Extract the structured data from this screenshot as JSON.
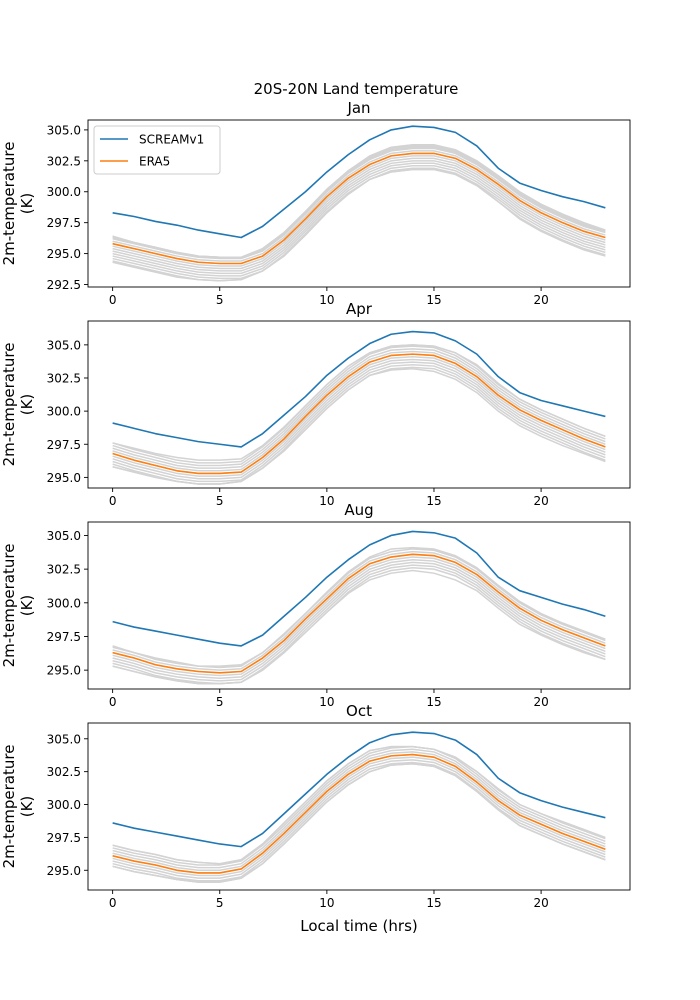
{
  "figure": {
    "title": "20S-20N Land temperature",
    "xlabel": "Local time (hrs)"
  },
  "chart_data": [
    {
      "type": "line",
      "title": "Jan",
      "xlabel": "",
      "ylabel": "2m-temperature\n(K)",
      "xlim": [
        -1.15,
        24.15
      ],
      "ylim": [
        292.3,
        305.8
      ],
      "xticks": [
        0,
        5,
        10,
        15,
        20
      ],
      "yticks": [
        292.5,
        295.0,
        297.5,
        300.0,
        302.5,
        305.0
      ],
      "ytick_labels": [
        "292.5",
        "295.0",
        "297.5",
        "300.0",
        "302.5",
        "305.0"
      ],
      "legend": {
        "position": "top-left",
        "entries": [
          "SCREAMv1",
          "ERA5"
        ]
      },
      "x": [
        0,
        1,
        2,
        3,
        4,
        5,
        6,
        7,
        8,
        9,
        10,
        11,
        12,
        13,
        14,
        15,
        16,
        17,
        18,
        19,
        20,
        21,
        22,
        23
      ],
      "series": [
        {
          "name": "SCREAMv1",
          "color": "#1f77b4",
          "values": [
            298.3,
            298.0,
            297.6,
            297.3,
            296.9,
            296.6,
            296.3,
            297.2,
            298.6,
            300.0,
            301.6,
            303.0,
            304.2,
            305.0,
            305.3,
            305.2,
            304.8,
            303.7,
            301.9,
            300.7,
            300.1,
            299.6,
            299.2,
            298.7
          ]
        },
        {
          "name": "ERA5",
          "color": "#ff7f0e",
          "values": [
            295.8,
            295.4,
            295.0,
            294.6,
            294.3,
            294.2,
            294.2,
            294.8,
            296.1,
            297.8,
            299.6,
            301.1,
            302.2,
            302.9,
            303.1,
            303.1,
            302.7,
            301.8,
            300.6,
            299.3,
            298.3,
            297.5,
            296.8,
            296.3
          ]
        }
      ],
      "ensemble": {
        "color": "#d3d3d3",
        "offsets": [
          -1.4,
          -1.2,
          -1.0,
          -0.8,
          -0.6,
          -0.4,
          -0.2,
          0.0,
          0.2,
          0.4,
          0.5,
          0.6
        ],
        "upper": [
          296.4,
          295.9,
          295.5,
          295.1,
          294.8,
          294.7,
          294.7,
          295.4,
          296.7,
          298.4,
          300.2,
          301.7,
          302.9,
          303.6,
          303.8,
          303.8,
          303.4,
          302.5,
          301.3,
          300.0,
          299.0,
          298.2,
          297.5,
          296.9
        ],
        "lower": [
          294.3,
          293.9,
          293.5,
          293.1,
          292.9,
          292.8,
          292.9,
          293.6,
          294.8,
          296.5,
          298.3,
          299.8,
          301.0,
          301.6,
          301.8,
          301.8,
          301.4,
          300.5,
          299.2,
          297.8,
          296.8,
          296.0,
          295.3,
          294.8
        ]
      }
    },
    {
      "type": "line",
      "title": "Apr",
      "xlabel": "",
      "ylabel": "2m-temperature\n(K)",
      "xlim": [
        -1.15,
        24.15
      ],
      "ylim": [
        294.2,
        306.8
      ],
      "xticks": [
        0,
        5,
        10,
        15,
        20
      ],
      "yticks": [
        295.0,
        297.5,
        300.0,
        302.5,
        305.0
      ],
      "ytick_labels": [
        "295.0",
        "297.5",
        "300.0",
        "302.5",
        "305.0"
      ],
      "x": [
        0,
        1,
        2,
        3,
        4,
        5,
        6,
        7,
        8,
        9,
        10,
        11,
        12,
        13,
        14,
        15,
        16,
        17,
        18,
        19,
        20,
        21,
        22,
        23
      ],
      "series": [
        {
          "name": "SCREAMv1",
          "color": "#1f77b4",
          "values": [
            299.1,
            298.7,
            298.3,
            298.0,
            297.7,
            297.5,
            297.3,
            298.3,
            299.7,
            301.1,
            302.7,
            304.0,
            305.1,
            305.8,
            306.0,
            305.9,
            305.3,
            304.3,
            302.6,
            301.4,
            300.8,
            300.4,
            300.0,
            299.6
          ]
        },
        {
          "name": "ERA5",
          "color": "#ff7f0e",
          "values": [
            296.8,
            296.3,
            295.9,
            295.5,
            295.3,
            295.3,
            295.4,
            296.5,
            297.9,
            299.6,
            301.2,
            302.6,
            303.7,
            304.2,
            304.3,
            304.2,
            303.6,
            302.6,
            301.2,
            300.1,
            299.3,
            298.6,
            297.9,
            297.3
          ]
        }
      ],
      "ensemble": {
        "color": "#d3d3d3",
        "offsets": [
          -1.0,
          -0.8,
          -0.6,
          -0.4,
          -0.2,
          0.0,
          0.2,
          0.4,
          0.6,
          0.8
        ],
        "upper": [
          297.6,
          297.2,
          296.8,
          296.5,
          296.3,
          296.3,
          296.4,
          297.4,
          298.8,
          300.4,
          302.0,
          303.4,
          304.4,
          304.9,
          305.0,
          304.9,
          304.4,
          303.5,
          302.1,
          300.9,
          300.1,
          299.4,
          298.7,
          298.1
        ],
        "lower": [
          295.8,
          295.4,
          295.0,
          294.7,
          294.5,
          294.5,
          294.7,
          295.7,
          297.0,
          298.6,
          300.2,
          301.6,
          302.7,
          303.1,
          303.2,
          303.0,
          302.4,
          301.4,
          300.0,
          298.9,
          298.1,
          297.4,
          296.8,
          296.2
        ]
      }
    },
    {
      "type": "line",
      "title": "Aug",
      "xlabel": "",
      "ylabel": "2m-temperature\n(K)",
      "xlim": [
        -1.15,
        24.15
      ],
      "ylim": [
        293.6,
        306.0
      ],
      "xticks": [
        0,
        5,
        10,
        15,
        20
      ],
      "yticks": [
        295.0,
        297.5,
        300.0,
        302.5,
        305.0
      ],
      "ytick_labels": [
        "295.0",
        "297.5",
        "300.0",
        "302.5",
        "305.0"
      ],
      "x": [
        0,
        1,
        2,
        3,
        4,
        5,
        6,
        7,
        8,
        9,
        10,
        11,
        12,
        13,
        14,
        15,
        16,
        17,
        18,
        19,
        20,
        21,
        22,
        23
      ],
      "series": [
        {
          "name": "SCREAMv1",
          "color": "#1f77b4",
          "values": [
            298.6,
            298.2,
            297.9,
            297.6,
            297.3,
            297.0,
            296.8,
            297.6,
            299.0,
            300.4,
            301.9,
            303.2,
            304.3,
            305.0,
            305.3,
            305.2,
            304.8,
            303.7,
            301.9,
            300.9,
            300.4,
            299.9,
            299.5,
            299.0
          ]
        },
        {
          "name": "ERA5",
          "color": "#ff7f0e",
          "values": [
            296.3,
            295.9,
            295.4,
            295.1,
            294.9,
            294.8,
            294.9,
            295.9,
            297.2,
            298.8,
            300.3,
            301.8,
            302.9,
            303.4,
            303.6,
            303.5,
            303.0,
            302.1,
            300.8,
            299.6,
            298.7,
            298.0,
            297.4,
            296.8
          ]
        }
      ],
      "ensemble": {
        "color": "#d3d3d3",
        "offsets": [
          -1.0,
          -0.8,
          -0.6,
          -0.4,
          -0.2,
          0.0,
          0.2,
          0.4
        ],
        "upper": [
          296.8,
          296.3,
          295.9,
          295.6,
          295.3,
          295.3,
          295.4,
          296.3,
          297.7,
          299.2,
          300.8,
          302.3,
          303.4,
          304.0,
          304.1,
          304.0,
          303.5,
          302.6,
          301.3,
          300.1,
          299.2,
          298.5,
          297.9,
          297.3
        ],
        "lower": [
          295.3,
          294.9,
          294.5,
          294.2,
          294.0,
          294.0,
          294.1,
          295.0,
          296.3,
          297.8,
          299.3,
          300.7,
          301.7,
          302.2,
          302.4,
          302.2,
          301.7,
          300.9,
          299.6,
          298.4,
          297.6,
          296.9,
          296.3,
          295.8
        ]
      }
    },
    {
      "type": "line",
      "title": "Oct",
      "xlabel": "Local time (hrs)",
      "ylabel": "2m-temperature\n(K)",
      "xlim": [
        -1.15,
        24.15
      ],
      "ylim": [
        293.5,
        306.2
      ],
      "xticks": [
        0,
        5,
        10,
        15,
        20
      ],
      "yticks": [
        295.0,
        297.5,
        300.0,
        302.5,
        305.0
      ],
      "ytick_labels": [
        "295.0",
        "297.5",
        "300.0",
        "302.5",
        "305.0"
      ],
      "x": [
        0,
        1,
        2,
        3,
        4,
        5,
        6,
        7,
        8,
        9,
        10,
        11,
        12,
        13,
        14,
        15,
        16,
        17,
        18,
        19,
        20,
        21,
        22,
        23
      ],
      "series": [
        {
          "name": "SCREAMv1",
          "color": "#1f77b4",
          "values": [
            298.6,
            298.2,
            297.9,
            297.6,
            297.3,
            297.0,
            296.8,
            297.8,
            299.3,
            300.8,
            302.3,
            303.6,
            304.7,
            305.3,
            305.5,
            305.4,
            304.9,
            303.8,
            302.0,
            300.9,
            300.3,
            299.8,
            299.4,
            299.0
          ]
        },
        {
          "name": "ERA5",
          "color": "#ff7f0e",
          "values": [
            296.1,
            295.7,
            295.4,
            295.0,
            294.8,
            294.8,
            295.1,
            296.3,
            297.8,
            299.4,
            301.0,
            302.3,
            303.3,
            303.7,
            303.8,
            303.6,
            302.9,
            301.7,
            300.3,
            299.2,
            298.5,
            297.8,
            297.2,
            296.6
          ]
        }
      ],
      "ensemble": {
        "color": "#d3d3d3",
        "offsets": [
          -1.0,
          -0.8,
          -0.6,
          -0.4,
          -0.2,
          0.0,
          0.2,
          0.4,
          0.6,
          0.8
        ],
        "upper": [
          296.9,
          296.5,
          296.2,
          295.8,
          295.6,
          295.5,
          295.8,
          297.0,
          298.6,
          300.2,
          301.8,
          303.1,
          304.1,
          304.4,
          304.4,
          304.2,
          303.6,
          302.5,
          301.2,
          300.0,
          299.3,
          298.7,
          298.1,
          297.5
        ],
        "lower": [
          295.3,
          294.9,
          294.6,
          294.3,
          294.1,
          294.1,
          294.4,
          295.5,
          297.0,
          298.6,
          300.2,
          301.5,
          302.5,
          303.0,
          303.1,
          302.9,
          302.2,
          301.0,
          299.6,
          298.4,
          297.7,
          297.0,
          296.4,
          295.8
        ]
      }
    }
  ]
}
